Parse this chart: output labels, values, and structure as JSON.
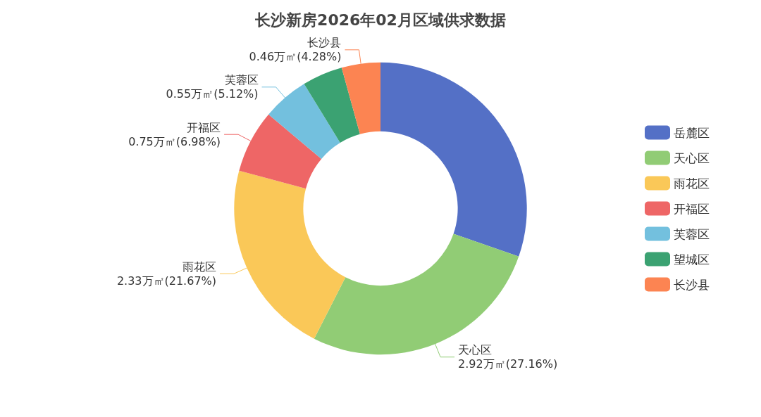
{
  "chart_data": {
    "type": "donut",
    "title": "长沙新房2026年02月区域供求数据",
    "categories": [
      "岳麓区",
      "天心区",
      "雨花区",
      "开福区",
      "芙蓉区",
      "望城区",
      "长沙县"
    ],
    "values": [
      3.26,
      2.92,
      2.33,
      0.75,
      0.55,
      0.48,
      0.46
    ],
    "value_labels": [
      null,
      "2.92万㎡(27.16%)",
      "2.33万㎡(21.67%)",
      "0.75万㎡(6.98%)",
      "0.55万㎡(5.12%)",
      null,
      "0.46万㎡(4.28%)"
    ],
    "colors": [
      "#5470c6",
      "#91cc75",
      "#fac858",
      "#ee6666",
      "#73c0de",
      "#3ba272",
      "#fc8452"
    ],
    "legend": "right"
  }
}
